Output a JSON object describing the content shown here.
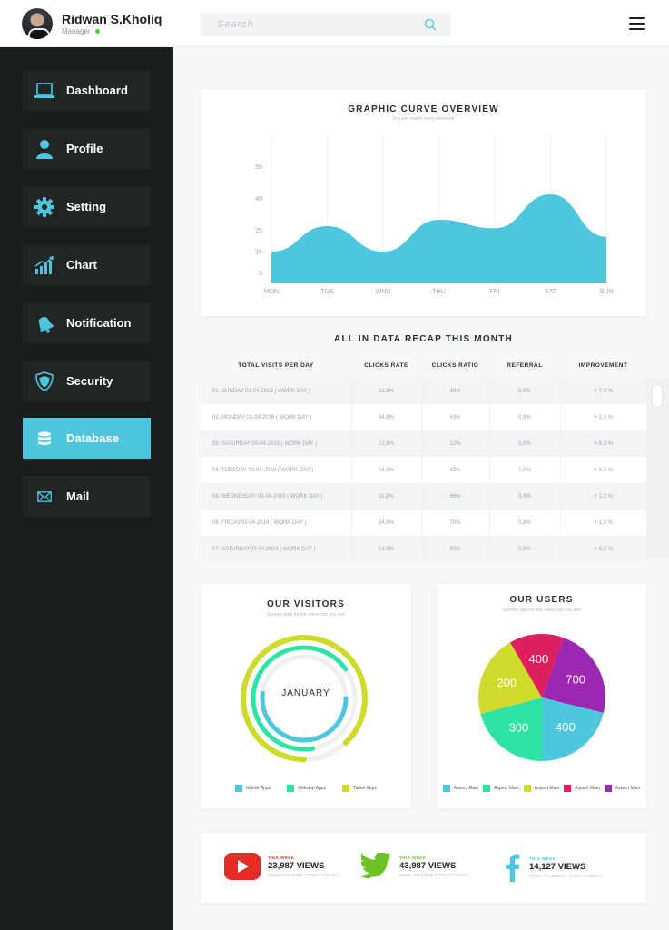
{
  "user": {
    "name": "Ridwan S.Kholiq",
    "role": "Manager"
  },
  "search": {
    "placeholder": "Search"
  },
  "sidebar": {
    "items": [
      {
        "label": "Dashboard",
        "icon": "laptop-icon",
        "active": false
      },
      {
        "label": "Profile",
        "icon": "user-icon",
        "active": false
      },
      {
        "label": "Setting",
        "icon": "gear-icon",
        "active": false
      },
      {
        "label": "Chart",
        "icon": "chart-icon",
        "active": false
      },
      {
        "label": "Notification",
        "icon": "bell-icon",
        "active": false
      },
      {
        "label": "Security",
        "icon": "shield-icon",
        "active": false
      },
      {
        "label": "Database",
        "icon": "database-icon",
        "active": true
      },
      {
        "label": "Mail",
        "icon": "mail-icon",
        "active": false
      }
    ]
  },
  "curve": {
    "title": "GRAPHIC CURVE OVERVIEW",
    "subtitle": "Day per month every weekend"
  },
  "recap": {
    "title": "ALL IN DATA RECAP THIS MONTH",
    "headers": [
      "TOTAL VISITS PER DAY",
      "CLICKS RATE",
      "CLICKS RATIO",
      "REFERRAL",
      "IMPROVEMENT"
    ],
    "rows": [
      [
        "01. SUNDAY 03-04-2019 ( WORK DAY )",
        "23,8%",
        "45%",
        "0,8%",
        "+ 7,3 %"
      ],
      [
        "02. MONDAY 03-04-2019 ( WORK DAY )",
        "44,8%",
        "43%",
        "0,9%",
        "+ 2,3 %"
      ],
      [
        "03. SATURDAY 03-04-2019 ( WORK DAY )",
        "12,8%",
        "12%",
        "1,0%",
        "+ 9,3 %"
      ],
      [
        "04. TUESDAY 03-04-2019 ( WORK DAY )",
        "54,8%",
        "42%",
        "1,0%",
        "+ 4,3 %"
      ],
      [
        "05. WEDNESDAY 03-04-2019 ( WORK DAY )",
        "11,8%",
        "66%",
        "0,9%",
        "+ 2,3 %"
      ],
      [
        "06. FRIDAY03-04-2019 ( WORK DAY )",
        "54,8%",
        "70%",
        "0,8%",
        "+ 1,3 %"
      ],
      [
        "07. SATURDAY03-04-2019 ( WORK DAY )",
        "12,8%",
        "80%",
        "0,9%",
        "+ 8,3 %"
      ]
    ]
  },
  "visitors": {
    "title": "OUR VISITORS",
    "subtitle": "Sumary data for this week can you see",
    "center_label": "JANUARY",
    "legend": [
      {
        "label": "Mobile Apps",
        "color": "#4ec6dd"
      },
      {
        "label": "Dekstop Apps",
        "color": "#2ee3a6"
      },
      {
        "label": "Tablet Apps",
        "color": "#cfdb2b"
      }
    ]
  },
  "users": {
    "title": "OUR USERS",
    "subtitle": "Sumary data for this week can you see",
    "legend": [
      {
        "label": "Aspect Main",
        "color": "#4ec6dd"
      },
      {
        "label": "Aspect Main",
        "color": "#2ee3a6"
      },
      {
        "label": "Aspect Main",
        "color": "#cfdb2b"
      },
      {
        "label": "Aspect Main",
        "color": "#dd1f5e"
      },
      {
        "label": "Aspect Main",
        "color": "#9c27b0"
      }
    ]
  },
  "social": [
    {
      "week": "THIS WEEK",
      "views": "23,987 VIEWS",
      "url": "WWW.YOUTUBE.COM/ACCOUNT",
      "icon": "youtube-icon",
      "color": "#e52d27"
    },
    {
      "week": "THIS WEEK",
      "views": "43,987 VIEWS",
      "url": "WWW.TWITTER.COM/ACCOUNT",
      "icon": "twitter-icon",
      "color": "#6cc324"
    },
    {
      "week": "THIS WEEK",
      "views": "14,127 VIEWS",
      "url": "WWW.FACEBOOK.COM/ACCOUNT",
      "icon": "facebook-icon",
      "color": "#4ec6dd"
    }
  ],
  "chart_data": [
    {
      "type": "area",
      "title": "GRAPHIC CURVE OVERVIEW",
      "subtitle": "Day per month every weekend",
      "x": [
        "MON",
        "TUE",
        "WND",
        "THU",
        "FRI",
        "SAT",
        "SUN"
      ],
      "y_ticks": [
        55,
        40,
        25,
        15,
        5
      ],
      "series": [
        {
          "values": [
            15,
            27,
            15,
            30,
            26,
            42,
            22
          ]
        }
      ],
      "ylim": [
        0,
        60
      ],
      "grid": true,
      "color": "#4ec6dd"
    },
    {
      "type": "pie",
      "title": "OUR VISITORS",
      "variant": "concentric-rings",
      "center_label": "JANUARY",
      "series": [
        {
          "name": "Mobile Apps",
          "fraction": 0.52,
          "color": "#4ec6dd"
        },
        {
          "name": "Dekstop Apps",
          "fraction": 0.68,
          "color": "#2ee3a6"
        },
        {
          "name": "Tablet Apps",
          "fraction": 0.88,
          "color": "#cfdb2b"
        }
      ]
    },
    {
      "type": "pie",
      "title": "OUR USERS",
      "slices": [
        {
          "value": 400,
          "color": "#4ec6dd"
        },
        {
          "value": 300,
          "color": "#2ee3a6"
        },
        {
          "value": 200,
          "color": "#cfdb2b"
        },
        {
          "value": 400,
          "color": "#dd1f5e"
        },
        {
          "value": 700,
          "color": "#9c27b0"
        }
      ]
    }
  ]
}
